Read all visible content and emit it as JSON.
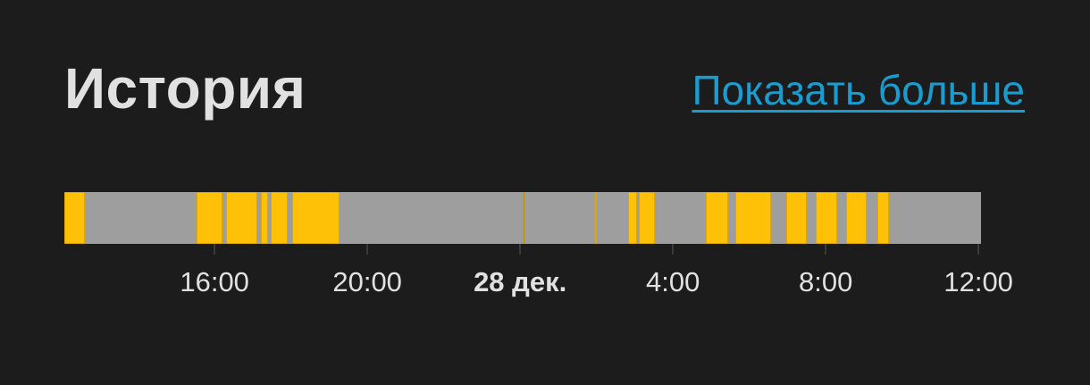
{
  "header": {
    "title": "История",
    "show_more_label": "Показать больше"
  },
  "colors": {
    "on": "#ffc107",
    "off": "#9e9e9e",
    "link": "#1b9cd0",
    "background": "#1c1c1c"
  },
  "timeline": {
    "range": {
      "start": "12-27 12:04",
      "end": "12-28 12:04"
    },
    "on_segments": [
      [
        "12-27 12:04",
        "12-27 12:36"
      ],
      [
        "12-27 15:32",
        "12-27 16:13"
      ],
      [
        "12-27 16:18",
        "12-27 17:07"
      ],
      [
        "12-27 17:13",
        "12-27 17:24"
      ],
      [
        "12-27 17:28",
        "12-27 17:55"
      ],
      [
        "12-27 18:02",
        "12-27 19:16"
      ],
      [
        "12-28 00:05",
        "12-28 00:07"
      ],
      [
        "12-28 01:58",
        "12-28 02:00"
      ],
      [
        "12-28 02:50",
        "12-28 03:04"
      ],
      [
        "12-28 03:07",
        "12-28 03:32"
      ],
      [
        "12-28 04:52",
        "12-28 05:27"
      ],
      [
        "12-28 05:38",
        "12-28 06:34"
      ],
      [
        "12-28 06:58",
        "12-28 07:31"
      ],
      [
        "12-28 07:45",
        "12-28 08:18"
      ],
      [
        "12-28 08:32",
        "12-28 09:05"
      ],
      [
        "12-28 09:21",
        "12-28 09:40"
      ]
    ],
    "ticks": [
      {
        "time": "12-27 16:00",
        "label": "16:00",
        "bold": false
      },
      {
        "time": "12-27 20:00",
        "label": "20:00",
        "bold": false
      },
      {
        "time": "12-28 00:00",
        "label": "28 дек.",
        "bold": true
      },
      {
        "time": "12-28 04:00",
        "label": "4:00",
        "bold": false
      },
      {
        "time": "12-28 08:00",
        "label": "8:00",
        "bold": false
      },
      {
        "time": "12-28 12:00",
        "label": "12:00",
        "bold": false
      }
    ]
  }
}
